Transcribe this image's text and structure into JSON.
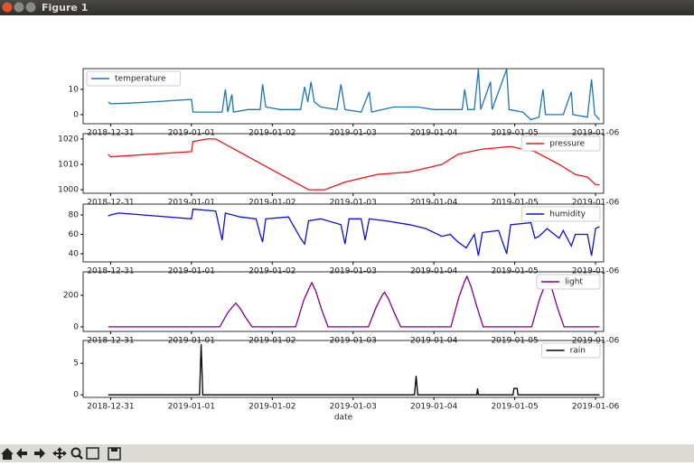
{
  "window": {
    "title": "Figure 1"
  },
  "chart_data": [
    {
      "type": "line",
      "legend": "upper left",
      "x": [
        -0.03,
        0,
        0.2,
        0.5,
        1.0,
        1.02,
        1.2,
        1.38,
        1.42,
        1.45,
        1.5,
        1.52,
        1.7,
        1.85,
        1.88,
        1.92,
        2.1,
        2.35,
        2.4,
        2.44,
        2.48,
        2.52,
        2.6,
        2.8,
        2.85,
        2.9,
        3.1,
        3.2,
        3.23,
        3.5,
        3.8,
        4.0,
        4.2,
        4.35,
        4.38,
        4.42,
        4.5,
        4.55,
        4.58,
        4.7,
        4.72,
        4.9,
        4.93,
        5.1,
        5.2,
        5.3,
        5.35,
        5.38,
        5.6,
        5.7,
        5.72,
        5.9,
        5.95,
        5.99,
        6.05
      ],
      "series": [
        {
          "name": "temperature",
          "color": "#1f77b4",
          "values": [
            5,
            4.3,
            4.5,
            5,
            6,
            1,
            1,
            1,
            10,
            1,
            8,
            1,
            2,
            2,
            12,
            3,
            2,
            2,
            11,
            5,
            13,
            5,
            3,
            2,
            12,
            2,
            1,
            9,
            1,
            3,
            3,
            2,
            2,
            2,
            10,
            2,
            2,
            18,
            2,
            13,
            2,
            18,
            2,
            1,
            -2,
            -1,
            10,
            0,
            0,
            9,
            0,
            -1,
            14,
            0,
            -2
          ]
        }
      ],
      "xlim": [
        -0.34,
        6.1
      ],
      "xticks": [
        {
          "value": 0,
          "label": "2018-12-31"
        },
        {
          "value": 1,
          "label": "2019-01-01"
        },
        {
          "value": 2,
          "label": "2019-01-02"
        },
        {
          "value": 3,
          "label": "2019-01-03"
        },
        {
          "value": 4,
          "label": "2019-01-04"
        },
        {
          "value": 5,
          "label": "2019-01-05"
        },
        {
          "value": 6,
          "label": "2019-01-06"
        }
      ],
      "ylim": [
        -3.6,
        18.2
      ],
      "yticks": [
        0,
        10
      ]
    },
    {
      "type": "line",
      "legend": "upper right",
      "x": [
        -0.03,
        0,
        1.0,
        1.02,
        1.2,
        1.3,
        2.45,
        2.65,
        2.9,
        3.3,
        3.7,
        4.1,
        4.3,
        4.6,
        4.95,
        5.25,
        5.55,
        5.75,
        5.9,
        6.0,
        6.05
      ],
      "series": [
        {
          "name": "pressure",
          "color": "#e8191c",
          "values": [
            1014,
            1013,
            1015,
            1019,
            1020,
            1020,
            1000,
            1000,
            1003,
            1006,
            1007,
            1010,
            1014,
            1016,
            1017,
            1015,
            1010,
            1006,
            1005,
            1002,
            1002
          ]
        }
      ],
      "xlim": [
        -0.34,
        6.1
      ],
      "xticks": [
        {
          "value": 0,
          "label": "2018-12-31"
        },
        {
          "value": 1,
          "label": "2019-01-01"
        },
        {
          "value": 2,
          "label": "2019-01-02"
        },
        {
          "value": 3,
          "label": "2019-01-03"
        },
        {
          "value": 4,
          "label": "2019-01-04"
        },
        {
          "value": 5,
          "label": "2019-01-05"
        },
        {
          "value": 6,
          "label": "2019-01-06"
        }
      ],
      "ylim": [
        998.6,
        1022.1
      ],
      "yticks": [
        1000,
        1010,
        1020
      ]
    },
    {
      "type": "line",
      "legend": "upper right",
      "x": [
        -0.03,
        0,
        0.1,
        1.0,
        1.02,
        1.3,
        1.38,
        1.42,
        1.6,
        1.8,
        1.85,
        1.88,
        1.92,
        2.2,
        2.35,
        2.4,
        2.45,
        2.6,
        2.85,
        2.9,
        2.95,
        3.1,
        3.15,
        3.2,
        3.4,
        3.7,
        3.9,
        4.1,
        4.2,
        4.3,
        4.4,
        4.5,
        4.55,
        4.6,
        4.8,
        4.9,
        4.95,
        5.2,
        5.25,
        5.3,
        5.4,
        5.55,
        5.6,
        5.7,
        5.75,
        5.9,
        5.95,
        6.0,
        6.05
      ],
      "series": [
        {
          "name": "humidity",
          "color": "#1010d0",
          "values": [
            79,
            80,
            82,
            76,
            86,
            84,
            54,
            82,
            78,
            76,
            60,
            52,
            76,
            78,
            56,
            50,
            74,
            76,
            70,
            50,
            76,
            76,
            54,
            76,
            74,
            70,
            66,
            58,
            60,
            52,
            46,
            60,
            38,
            62,
            64,
            40,
            70,
            72,
            56,
            58,
            66,
            56,
            64,
            48,
            60,
            60,
            38,
            66,
            68
          ]
        }
      ],
      "xlim": [
        -0.34,
        6.1
      ],
      "xticks": [
        {
          "value": 0,
          "label": "2018-12-31"
        },
        {
          "value": 1,
          "label": "2019-01-01"
        },
        {
          "value": 2,
          "label": "2019-01-02"
        },
        {
          "value": 3,
          "label": "2019-01-03"
        },
        {
          "value": 4,
          "label": "2019-01-04"
        },
        {
          "value": 5,
          "label": "2019-01-05"
        },
        {
          "value": 6,
          "label": "2019-01-06"
        }
      ],
      "ylim": [
        31.6,
        91.2
      ],
      "yticks": [
        40,
        60,
        80
      ]
    },
    {
      "type": "line",
      "legend": "upper right",
      "x": [
        -0.03,
        1.35,
        1.45,
        1.52,
        1.55,
        1.6,
        1.67,
        1.75,
        2.29,
        2.39,
        2.46,
        2.49,
        2.54,
        2.61,
        2.69,
        3.19,
        3.29,
        3.36,
        3.39,
        3.44,
        3.51,
        3.59,
        4.21,
        4.31,
        4.38,
        4.41,
        4.46,
        4.53,
        4.61,
        5.21,
        5.31,
        5.38,
        5.41,
        5.46,
        5.53,
        5.61,
        6.05
      ],
      "series": [
        {
          "name": "light",
          "color": "#800080",
          "values": [
            0,
            0,
            90,
            135,
            150,
            120,
            60,
            0,
            0,
            170,
            250,
            280,
            225,
            110,
            0,
            0,
            130,
            200,
            220,
            175,
            90,
            0,
            0,
            190,
            290,
            320,
            255,
            130,
            0,
            0,
            180,
            270,
            300,
            240,
            120,
            0,
            0
          ]
        }
      ],
      "xlim": [
        -0.34,
        6.1
      ],
      "xticks": [
        {
          "value": 0,
          "label": "2018-12-31"
        },
        {
          "value": 1,
          "label": "2019-01-01"
        },
        {
          "value": 2,
          "label": "2019-01-02"
        },
        {
          "value": 3,
          "label": "2019-01-03"
        },
        {
          "value": 4,
          "label": "2019-01-04"
        },
        {
          "value": 5,
          "label": "2019-01-05"
        },
        {
          "value": 6,
          "label": "2019-01-06"
        }
      ],
      "ylim": [
        -29,
        349
      ],
      "yticks": [
        0,
        200
      ]
    },
    {
      "type": "line",
      "legend": "upper right",
      "xlabel": "date",
      "x": [
        -0.03,
        1.1,
        1.12,
        1.14,
        3.76,
        3.78,
        3.8,
        4.53,
        4.54,
        4.55,
        4.98,
        4.99,
        5.03,
        5.04,
        6.05
      ],
      "series": [
        {
          "name": "rain",
          "color": "#000000",
          "values": [
            0,
            0,
            8,
            0,
            0,
            3,
            0,
            0,
            1,
            0,
            0,
            1,
            1,
            0,
            0
          ]
        }
      ],
      "xlim": [
        -0.34,
        6.1
      ],
      "xticks": [
        {
          "value": 0,
          "label": "2018-12-31"
        },
        {
          "value": 1,
          "label": "2019-01-01"
        },
        {
          "value": 2,
          "label": "2019-01-02"
        },
        {
          "value": 3,
          "label": "2019-01-03"
        },
        {
          "value": 4,
          "label": "2019-01-04"
        },
        {
          "value": 5,
          "label": "2019-01-05"
        },
        {
          "value": 6,
          "label": "2019-01-06"
        }
      ],
      "ylim": [
        -0.4,
        8.6
      ],
      "yticks": [
        0,
        5
      ]
    }
  ]
}
